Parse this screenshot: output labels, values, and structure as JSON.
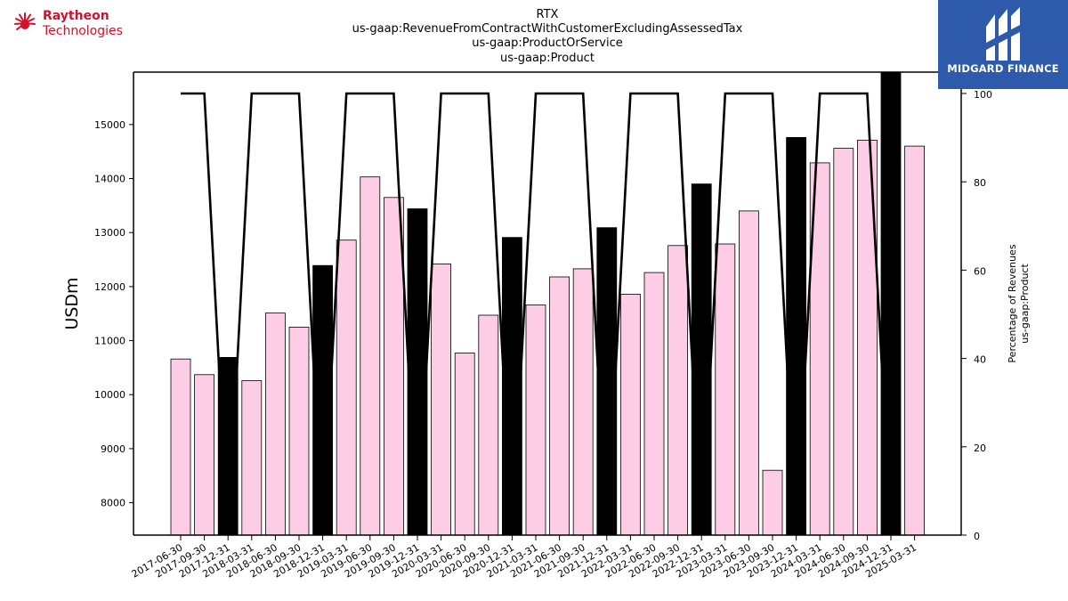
{
  "logos": {
    "left_line1": "Raytheon",
    "left_line2": "Technologies",
    "left_icon": "raytheon-sunburst-icon",
    "right_text": "MIDGARD FINANCE",
    "right_icon": "midgard-m-icon",
    "right_bg": "#2e5aac"
  },
  "chart_data": {
    "type": "bar",
    "title": [
      "RTX",
      "us-gaap:RevenueFromContractWithCustomerExcludingAssessedTax",
      "us-gaap:ProductOrService",
      "us-gaap:Product"
    ],
    "ylabel": "USDm",
    "ylabel_right": [
      "Percentage of Revenues",
      "us-gaap:Product"
    ],
    "ylim": [
      7400,
      15970
    ],
    "ylim_right": [
      0,
      100
    ],
    "yticks": [
      8000,
      9000,
      10000,
      11000,
      12000,
      13000,
      14000,
      15000
    ],
    "yticks_right": [
      0,
      20,
      40,
      60,
      80,
      100
    ],
    "categories": [
      "2017-06-30",
      "2017-09-30",
      "2017-12-31",
      "2018-03-31",
      "2018-06-30",
      "2018-09-30",
      "2018-12-31",
      "2019-03-31",
      "2019-06-30",
      "2019-09-30",
      "2019-12-31",
      "2020-03-31",
      "2020-06-30",
      "2020-09-30",
      "2020-12-31",
      "2021-03-31",
      "2021-06-30",
      "2021-09-30",
      "2021-12-31",
      "2022-03-31",
      "2022-06-30",
      "2022-09-30",
      "2022-12-31",
      "2023-03-31",
      "2023-06-30",
      "2023-09-30",
      "2023-12-31",
      "2024-03-31",
      "2024-06-30",
      "2024-09-30",
      "2024-12-31",
      "2025-03-31"
    ],
    "series": [
      {
        "values": [
          10660,
          10370,
          10690,
          10260,
          11510,
          11250,
          12390,
          12860,
          14030,
          13650,
          13440,
          12420,
          10770,
          11470,
          12910,
          11660,
          12180,
          12330,
          13090,
          11860,
          12260,
          12760,
          13900,
          12790,
          13400,
          8600,
          14760,
          14290,
          14560,
          14710,
          15970,
          14600
        ],
        "colors": [
          "#fccde5",
          "#fccde5",
          "#000000",
          "#fccde5",
          "#fccde5",
          "#fccde5",
          "#000000",
          "#fccde5",
          "#fccde5",
          "#fccde5",
          "#000000",
          "#fccde5",
          "#fccde5",
          "#fccde5",
          "#000000",
          "#fccde5",
          "#fccde5",
          "#fccde5",
          "#000000",
          "#fccde5",
          "#fccde5",
          "#fccde5",
          "#000000",
          "#fccde5",
          "#fccde5",
          "#fccde5",
          "#000000",
          "#fccde5",
          "#fccde5",
          "#fccde5",
          "#000000",
          "#fccde5"
        ]
      },
      {
        "type": "line",
        "axis": "right",
        "values": [
          100,
          100,
          0,
          100,
          100,
          100,
          0,
          100,
          100,
          100,
          0,
          100,
          100,
          100,
          0,
          100,
          100,
          100,
          0,
          100,
          100,
          100,
          0,
          100,
          100,
          100,
          0,
          100,
          100,
          100,
          0,
          null
        ]
      }
    ],
    "colors": {
      "bar": "#fccde5",
      "bar_q4": "#000000",
      "line": "#000000"
    },
    "grid": false,
    "legend": "none"
  }
}
